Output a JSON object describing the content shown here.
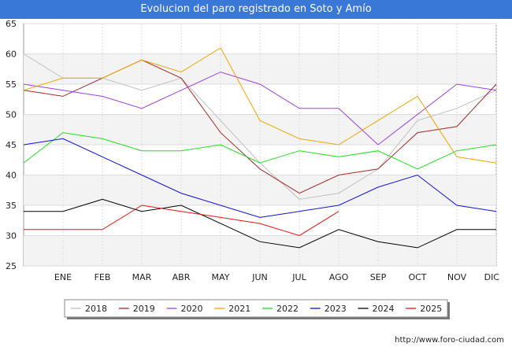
{
  "chart_data": {
    "type": "line",
    "title": "Evolucion del paro registrado en Soto y Amío",
    "xlabel": "",
    "ylabel": "",
    "ylim": [
      25,
      65
    ],
    "yticks": [
      25,
      30,
      35,
      40,
      45,
      50,
      55,
      60,
      65
    ],
    "categories": [
      "",
      "ENE",
      "FEB",
      "MAR",
      "ABR",
      "MAY",
      "JUN",
      "JUL",
      "AGO",
      "SEP",
      "OCT",
      "NOV",
      "DIC"
    ],
    "grid": true,
    "legend_position": "bottom",
    "series": [
      {
        "name": "2018",
        "color": "#c0c0c0",
        "values": [
          60,
          56,
          56,
          54,
          56,
          49,
          42,
          36,
          37,
          41,
          49,
          51,
          54
        ]
      },
      {
        "name": "2019",
        "color": "#a52a2a",
        "values": [
          54,
          53,
          56,
          59,
          56,
          47,
          41,
          37,
          40,
          41,
          47,
          48,
          55
        ]
      },
      {
        "name": "2020",
        "color": "#a040e0",
        "values": [
          55,
          54,
          53,
          51,
          54,
          57,
          55,
          51,
          51,
          45,
          50,
          55,
          54
        ]
      },
      {
        "name": "2021",
        "color": "#f0a500",
        "values": [
          54,
          56,
          56,
          59,
          57,
          61,
          49,
          46,
          45,
          49,
          53,
          43,
          42
        ]
      },
      {
        "name": "2022",
        "color": "#22dd22",
        "values": [
          42,
          47,
          46,
          44,
          44,
          45,
          42,
          44,
          43,
          44,
          41,
          44,
          45
        ]
      },
      {
        "name": "2023",
        "color": "#1010dd",
        "values": [
          45,
          46,
          43,
          40,
          37,
          35,
          33,
          34,
          35,
          38,
          40,
          35,
          34
        ]
      },
      {
        "name": "2024",
        "color": "#000000",
        "values": [
          34,
          34,
          36,
          34,
          35,
          32,
          29,
          28,
          31,
          29,
          28,
          31,
          31
        ]
      },
      {
        "name": "2025",
        "color": "#ee1111",
        "values": [
          31,
          31,
          31,
          35,
          34,
          33,
          32,
          30,
          34,
          null,
          null,
          null,
          null
        ]
      }
    ]
  },
  "credit": "http://www.foro-ciudad.com"
}
